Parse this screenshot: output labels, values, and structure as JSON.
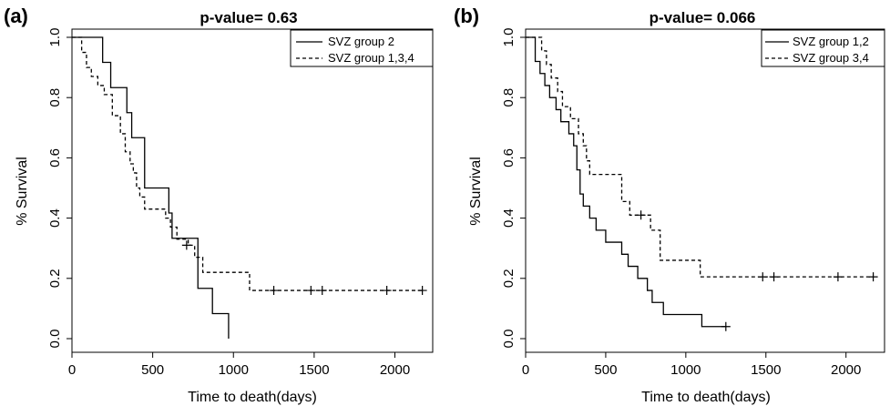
{
  "chart_data": [
    {
      "type": "line",
      "step": true,
      "panel": "(a)",
      "title": "p-value= 0.63",
      "xlabel": "Time to death(days)",
      "ylabel": "% Survival",
      "xlim": [
        0,
        2200
      ],
      "ylim": [
        0,
        1.0
      ],
      "xticks": [
        0,
        500,
        1000,
        1500,
        2000
      ],
      "yticks": [
        "0.0",
        "0.2",
        "0.4",
        "0.6",
        "0.8",
        "1.0"
      ],
      "grid": false,
      "legend_position": "top-right",
      "series": [
        {
          "name": "SVZ group 2",
          "style": "solid",
          "x": [
            0,
            190,
            240,
            340,
            370,
            450,
            600,
            620,
            750,
            780,
            870,
            970
          ],
          "y": [
            1.0,
            0.917,
            0.833,
            0.75,
            0.667,
            0.5,
            0.417,
            0.333,
            0.333,
            0.167,
            0.083,
            0.0
          ],
          "censored": []
        },
        {
          "name": "SVZ group 1,3,4",
          "style": "dashed",
          "x": [
            0,
            60,
            90,
            120,
            160,
            200,
            250,
            300,
            330,
            360,
            380,
            400,
            420,
            450,
            580,
            610,
            650,
            720,
            760,
            810,
            1100
          ],
          "y": [
            1.0,
            0.95,
            0.9,
            0.87,
            0.84,
            0.81,
            0.74,
            0.68,
            0.62,
            0.58,
            0.55,
            0.5,
            0.47,
            0.43,
            0.4,
            0.37,
            0.33,
            0.31,
            0.27,
            0.22,
            0.16
          ],
          "censored": [
            [
              710,
              0.31
            ],
            [
              1250,
              0.16
            ],
            [
              1480,
              0.16
            ],
            [
              1550,
              0.16
            ],
            [
              1950,
              0.16
            ],
            [
              2170,
              0.16
            ]
          ]
        }
      ]
    },
    {
      "type": "line",
      "step": true,
      "panel": "(b)",
      "title": "p-value= 0.066",
      "xlabel": "Time to death(days)",
      "ylabel": "% Survival",
      "xlim": [
        0,
        2200
      ],
      "ylim": [
        0,
        1.0
      ],
      "xticks": [
        0,
        500,
        1000,
        1500,
        2000
      ],
      "yticks": [
        "0.0",
        "0.2",
        "0.4",
        "0.6",
        "0.8",
        "1.0"
      ],
      "grid": false,
      "legend_position": "top-right",
      "series": [
        {
          "name": "SVZ group 1,2",
          "style": "solid",
          "x": [
            0,
            60,
            90,
            120,
            150,
            190,
            220,
            270,
            300,
            320,
            340,
            360,
            400,
            440,
            500,
            600,
            640,
            700,
            760,
            790,
            860,
            950,
            1100
          ],
          "y": [
            1.0,
            0.92,
            0.88,
            0.84,
            0.8,
            0.76,
            0.72,
            0.68,
            0.64,
            0.56,
            0.48,
            0.44,
            0.4,
            0.36,
            0.32,
            0.28,
            0.24,
            0.2,
            0.16,
            0.12,
            0.08,
            0.08,
            0.04
          ],
          "censored": [
            [
              1250,
              0.04
            ]
          ]
        },
        {
          "name": "SVZ group 3,4",
          "style": "dashed",
          "x": [
            0,
            100,
            130,
            160,
            200,
            230,
            280,
            330,
            360,
            380,
            400,
            460,
            600,
            650,
            780,
            840,
            1090
          ],
          "y": [
            1.0,
            0.955,
            0.91,
            0.865,
            0.82,
            0.77,
            0.73,
            0.68,
            0.64,
            0.59,
            0.545,
            0.545,
            0.455,
            0.41,
            0.36,
            0.26,
            0.205
          ],
          "censored": [
            [
              720,
              0.41
            ],
            [
              1480,
              0.205
            ],
            [
              1550,
              0.205
            ],
            [
              1950,
              0.205
            ],
            [
              2170,
              0.205
            ]
          ]
        }
      ]
    }
  ]
}
